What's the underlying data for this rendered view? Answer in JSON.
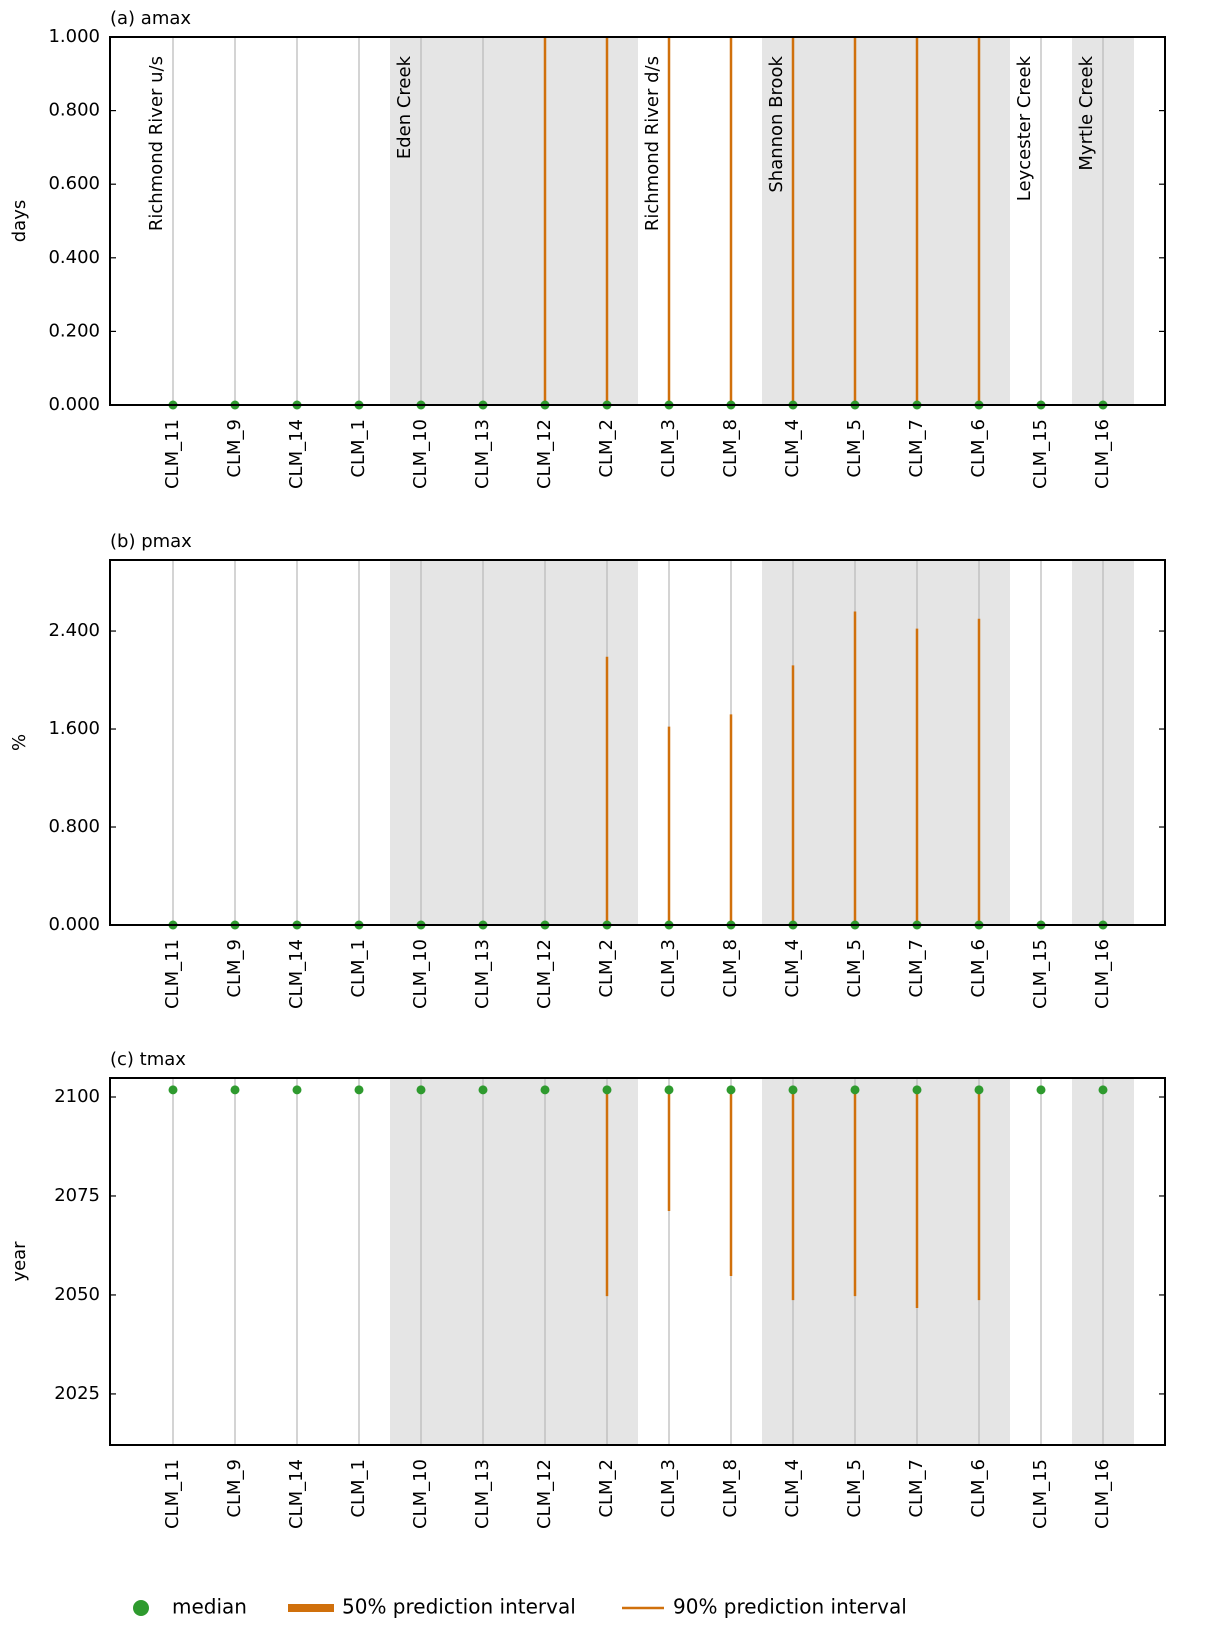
{
  "chart_data": [
    {
      "type": "interval",
      "title": "(a) amax",
      "y_label": "days",
      "categories": [
        "CLM_11",
        "CLM_9",
        "CLM_14",
        "CLM_1",
        "CLM_10",
        "CLM_13",
        "CLM_12",
        "CLM_2",
        "CLM_3",
        "CLM_8",
        "CLM_4",
        "CLM_5",
        "CLM_7",
        "CLM_6",
        "CLM_15",
        "CLM_16"
      ],
      "median": [
        0,
        0,
        0,
        0,
        0,
        0,
        0,
        0,
        0,
        0,
        0,
        0,
        0,
        0,
        0,
        0
      ],
      "p90_low": [
        0,
        0,
        0,
        0,
        0,
        0,
        0,
        0,
        0,
        0,
        0,
        0,
        0,
        0,
        0,
        0
      ],
      "p90_high": [
        0,
        0,
        0,
        0,
        0,
        0,
        1,
        1,
        1,
        1,
        1,
        1,
        1,
        1,
        0,
        0
      ],
      "ylim": [
        0,
        1
      ],
      "yticks": [
        {
          "value": 0,
          "label": "0.000"
        },
        {
          "value": 0.2,
          "label": "0.200"
        },
        {
          "value": 0.4,
          "label": "0.400"
        },
        {
          "value": 0.6,
          "label": "0.600"
        },
        {
          "value": 0.8,
          "label": "0.800"
        },
        {
          "value": 1,
          "label": "1.000"
        }
      ]
    },
    {
      "type": "interval",
      "title": "(b) pmax",
      "y_label": "%",
      "categories": [
        "CLM_11",
        "CLM_9",
        "CLM_14",
        "CLM_1",
        "CLM_10",
        "CLM_13",
        "CLM_12",
        "CLM_2",
        "CLM_3",
        "CLM_8",
        "CLM_4",
        "CLM_5",
        "CLM_7",
        "CLM_6",
        "CLM_15",
        "CLM_16"
      ],
      "median": [
        0,
        0,
        0,
        0,
        0,
        0,
        0,
        0,
        0,
        0,
        0,
        0,
        0,
        0,
        0,
        0
      ],
      "p90_low": [
        0,
        0,
        0,
        0,
        0,
        0,
        0,
        0,
        0,
        0,
        0,
        0,
        0,
        0,
        0,
        0
      ],
      "p90_high": [
        0,
        0,
        0,
        0,
        0,
        0,
        0,
        2.19,
        1.62,
        1.72,
        2.12,
        2.56,
        2.42,
        2.5,
        0,
        0
      ],
      "ylim": [
        0,
        2.98
      ],
      "yticks": [
        {
          "value": 0,
          "label": "0.000"
        },
        {
          "value": 0.8,
          "label": "0.800"
        },
        {
          "value": 1.6,
          "label": "1.600"
        },
        {
          "value": 2.4,
          "label": "2.400"
        }
      ]
    },
    {
      "type": "interval",
      "title": "(c) tmax",
      "y_label": "year",
      "categories": [
        "CLM_11",
        "CLM_9",
        "CLM_14",
        "CLM_1",
        "CLM_10",
        "CLM_13",
        "CLM_12",
        "CLM_2",
        "CLM_3",
        "CLM_8",
        "CLM_4",
        "CLM_5",
        "CLM_7",
        "CLM_6",
        "CLM_15",
        "CLM_16"
      ],
      "median": [
        2101.8,
        2101.8,
        2101.8,
        2101.8,
        2101.8,
        2101.8,
        2101.8,
        2101.8,
        2101.8,
        2101.8,
        2101.8,
        2101.8,
        2101.8,
        2101.8,
        2101.8,
        2101.8
      ],
      "p90_low": [
        2101.8,
        2101.8,
        2101.8,
        2101.8,
        2101.8,
        2101.8,
        2101.8,
        2049.7,
        2071.2,
        2054.8,
        2048.7,
        2049.7,
        2046.7,
        2048.7,
        2101.8,
        2101.8
      ],
      "p90_high": [
        2101.8,
        2101.8,
        2101.8,
        2101.8,
        2101.8,
        2101.8,
        2101.8,
        2101.8,
        2101.8,
        2101.8,
        2101.8,
        2101.8,
        2101.8,
        2101.8,
        2101.8,
        2101.8
      ],
      "ylim": [
        2012.1,
        2104.8
      ],
      "yticks": [
        2025,
        2050,
        2075,
        2100
      ]
    }
  ],
  "groups": [
    {
      "label": "Richmond River u/s",
      "start": 0
    },
    {
      "label": "Eden Creek",
      "start": 4
    },
    {
      "label": "Richmond River d/s",
      "start": 8
    },
    {
      "label": "Shannon Brook",
      "start": 10
    },
    {
      "label": "Leycester Creek",
      "start": 14
    },
    {
      "label": "Myrtle Creek",
      "start": 15
    }
  ],
  "legend": [
    {
      "name": "median",
      "color": "#2e9a2e"
    },
    {
      "name": "50% prediction interval",
      "color": "#d0700c"
    },
    {
      "name": "90% prediction interval",
      "color": "#d0700c"
    }
  ]
}
